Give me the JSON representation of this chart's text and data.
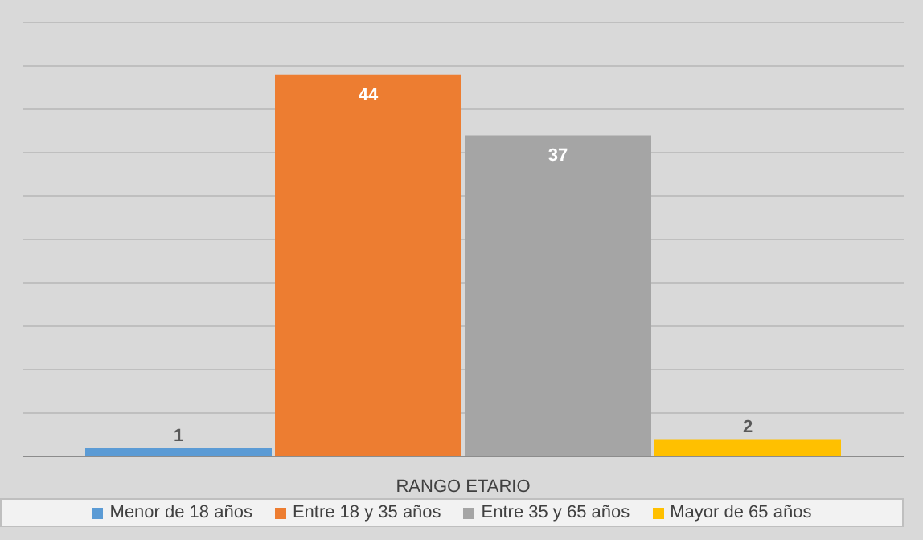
{
  "chart_data": {
    "type": "bar",
    "xlabel": "RANGO ETARIO",
    "stacked": true,
    "categories": [
      null,
      null,
      null,
      null
    ],
    "series": [
      {
        "name": "Menor de 18 años",
        "color": "#5b9bd5",
        "values": [
          1,
          null,
          null,
          null
        ]
      },
      {
        "name": "Entre 18 y 35 años",
        "color": "#ed7d31",
        "values": [
          null,
          44,
          null,
          null
        ]
      },
      {
        "name": "Entre 35 y 65 años",
        "color": "#a5a5a5",
        "values": [
          null,
          null,
          37,
          null
        ]
      },
      {
        "name": "Mayor de 65 años",
        "color": "#ffc000",
        "values": [
          null,
          null,
          null,
          2
        ]
      }
    ],
    "tick_labels": false,
    "grid": "y",
    "legend": "bottom",
    "data_labels": true
  }
}
